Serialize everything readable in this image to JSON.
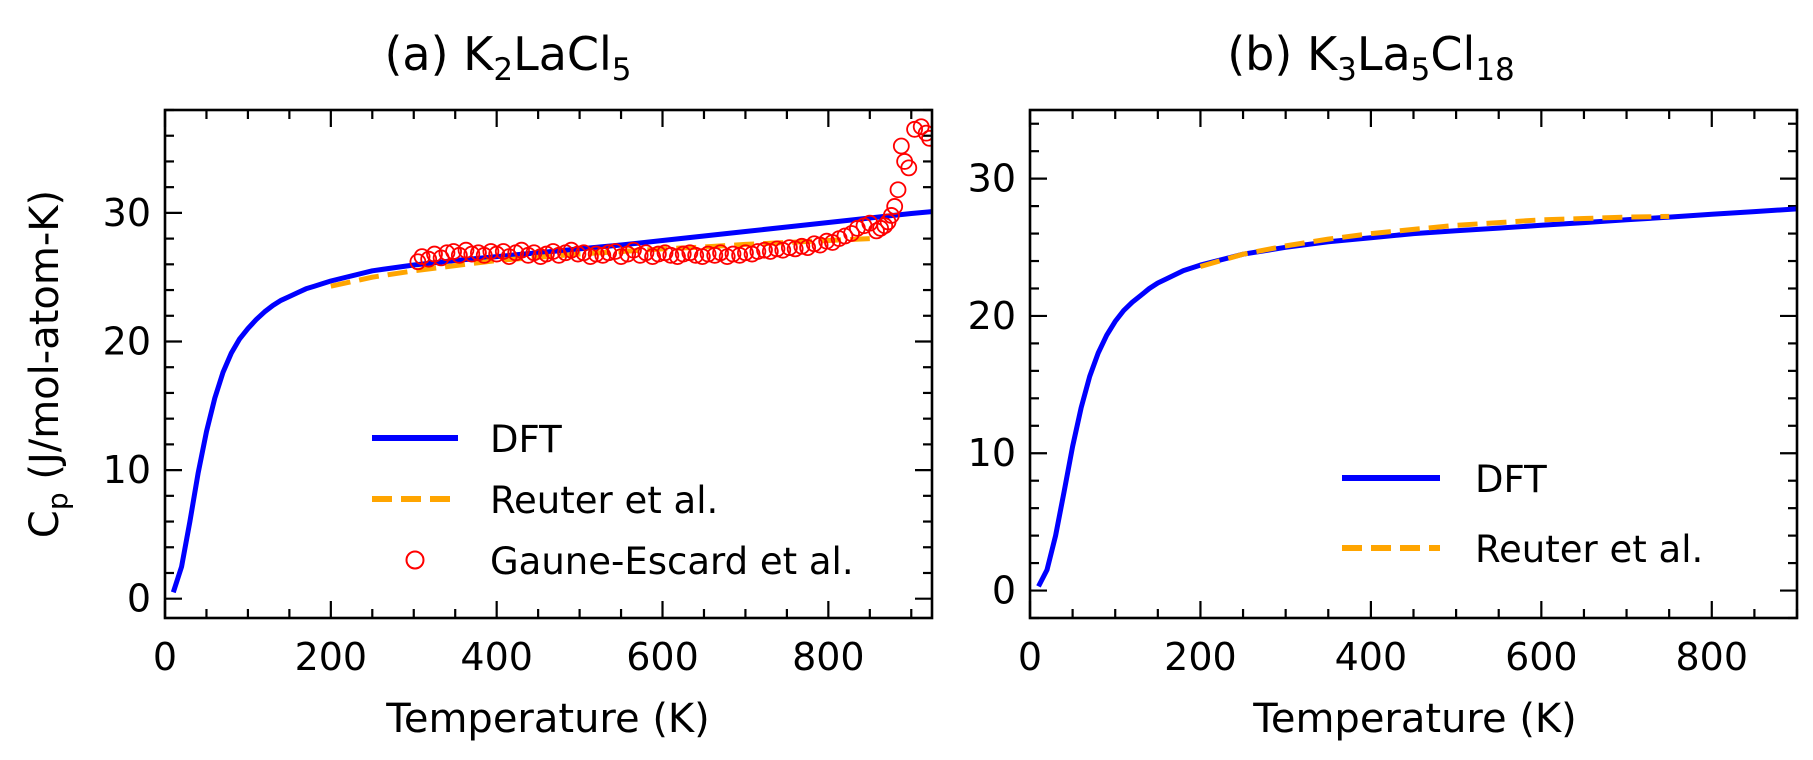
{
  "chart_data": [
    {
      "type": "line",
      "title": {
        "prefix": "(a)",
        "parts": [
          [
            "K",
            ""
          ],
          [
            "2",
            "sub"
          ],
          [
            "LaCl",
            ""
          ],
          [
            "5",
            "sub"
          ]
        ]
      },
      "xlabel": "Temperature (K)",
      "ylabel": {
        "main": "C",
        "sub": "p",
        "rest": " (J/mol-atom-K)"
      },
      "xlim": [
        0,
        925
      ],
      "ylim": [
        -1.5,
        38
      ],
      "xticks": [
        0,
        200,
        400,
        600,
        800
      ],
      "yticks": [
        0,
        10,
        20,
        30
      ],
      "grid": false,
      "legend_position": "lower-center",
      "series": [
        {
          "name": "DFT",
          "style": "solid",
          "color": "#0000ff",
          "x": [
            10,
            20,
            30,
            40,
            50,
            60,
            70,
            80,
            90,
            100,
            110,
            120,
            130,
            140,
            150,
            160,
            170,
            180,
            190,
            200,
            250,
            300,
            350,
            400,
            450,
            500,
            550,
            600,
            650,
            700,
            750,
            800,
            850,
            900,
            925
          ],
          "y": [
            0.5,
            2.5,
            6.0,
            9.8,
            13.0,
            15.6,
            17.6,
            19.1,
            20.2,
            21.0,
            21.7,
            22.3,
            22.8,
            23.2,
            23.5,
            23.8,
            24.1,
            24.3,
            24.5,
            24.7,
            25.5,
            25.95,
            26.3,
            26.6,
            26.9,
            27.2,
            27.5,
            27.85,
            28.2,
            28.55,
            28.9,
            29.25,
            29.6,
            29.95,
            30.1
          ]
        },
        {
          "name": "Reuter et al.",
          "style": "dashed",
          "color": "#ffa500",
          "x": [
            200,
            250,
            300,
            350,
            400,
            450,
            500,
            550,
            600,
            650,
            700,
            750,
            800,
            850
          ],
          "y": [
            24.3,
            25.0,
            25.5,
            25.9,
            26.3,
            26.55,
            26.8,
            27.0,
            27.2,
            27.35,
            27.55,
            27.7,
            27.85,
            28.0
          ]
        },
        {
          "name": "Gaune-Escard et al.",
          "style": "markers",
          "color": "#ff0000",
          "x": [
            305,
            310,
            318,
            325,
            333,
            340,
            348,
            355,
            363,
            370,
            378,
            385,
            393,
            400,
            408,
            415,
            423,
            430,
            438,
            445,
            453,
            460,
            468,
            475,
            483,
            490,
            498,
            505,
            513,
            520,
            528,
            535,
            543,
            550,
            558,
            565,
            573,
            580,
            588,
            595,
            603,
            610,
            618,
            625,
            633,
            640,
            648,
            655,
            663,
            670,
            678,
            685,
            693,
            700,
            708,
            715,
            723,
            730,
            738,
            745,
            753,
            760,
            768,
            775,
            783,
            790,
            798,
            805,
            813,
            820,
            828,
            835,
            843,
            850,
            858,
            863,
            868,
            872,
            876,
            880,
            884,
            888,
            892,
            897,
            904,
            912,
            918,
            922
          ],
          "y": [
            26.2,
            26.6,
            26.4,
            26.8,
            26.5,
            26.9,
            27.0,
            26.7,
            27.1,
            26.8,
            26.9,
            26.7,
            27.0,
            26.8,
            27.0,
            26.6,
            26.9,
            27.1,
            26.7,
            26.9,
            26.6,
            26.8,
            27.0,
            26.7,
            26.9,
            27.1,
            26.8,
            26.9,
            26.6,
            26.8,
            26.7,
            26.9,
            27.0,
            26.6,
            26.8,
            27.1,
            26.7,
            26.9,
            26.6,
            26.8,
            26.9,
            26.7,
            26.6,
            26.8,
            26.9,
            26.7,
            26.6,
            26.8,
            26.7,
            26.9,
            26.6,
            26.8,
            26.7,
            26.9,
            26.8,
            27.0,
            27.1,
            27.0,
            27.2,
            27.1,
            27.3,
            27.2,
            27.4,
            27.3,
            27.6,
            27.5,
            27.8,
            27.7,
            28.0,
            28.2,
            28.4,
            28.8,
            29.0,
            29.2,
            28.6,
            28.8,
            29.0,
            29.3,
            29.8,
            30.5,
            31.8,
            35.2,
            34.0,
            33.5,
            36.5,
            36.7,
            36.2,
            35.8
          ]
        }
      ]
    },
    {
      "type": "line",
      "title": {
        "prefix": "(b)",
        "parts": [
          [
            "K",
            ""
          ],
          [
            "3",
            "sub"
          ],
          [
            "La",
            ""
          ],
          [
            "5",
            "sub"
          ],
          [
            "Cl",
            ""
          ],
          [
            "18",
            "sub"
          ]
        ]
      },
      "xlabel": "Temperature (K)",
      "ylabel": null,
      "xlim": [
        0,
        900
      ],
      "ylim": [
        -2,
        35
      ],
      "xticks": [
        0,
        200,
        400,
        600,
        800
      ],
      "yticks": [
        0,
        10,
        20,
        30
      ],
      "grid": false,
      "legend_position": "lower-right",
      "series": [
        {
          "name": "DFT",
          "style": "solid",
          "color": "#0000ff",
          "x": [
            10,
            20,
            30,
            40,
            50,
            60,
            70,
            80,
            90,
            100,
            110,
            120,
            130,
            140,
            150,
            160,
            170,
            180,
            190,
            200,
            250,
            300,
            350,
            400,
            450,
            500,
            550,
            600,
            650,
            700,
            750,
            800,
            850,
            900
          ],
          "y": [
            0.3,
            1.5,
            4.0,
            7.2,
            10.5,
            13.3,
            15.6,
            17.3,
            18.6,
            19.6,
            20.4,
            21.0,
            21.5,
            22.0,
            22.4,
            22.7,
            23.0,
            23.3,
            23.5,
            23.7,
            24.5,
            25.0,
            25.4,
            25.7,
            26.0,
            26.2,
            26.4,
            26.6,
            26.8,
            27.0,
            27.2,
            27.4,
            27.6,
            27.8
          ]
        },
        {
          "name": "Reuter et al.",
          "style": "dashed",
          "color": "#ffa500",
          "x": [
            200,
            250,
            300,
            350,
            400,
            450,
            500,
            550,
            600,
            650,
            700,
            750
          ],
          "y": [
            23.6,
            24.5,
            25.1,
            25.6,
            26.0,
            26.3,
            26.6,
            26.8,
            27.0,
            27.1,
            27.2,
            27.25
          ]
        }
      ]
    }
  ]
}
